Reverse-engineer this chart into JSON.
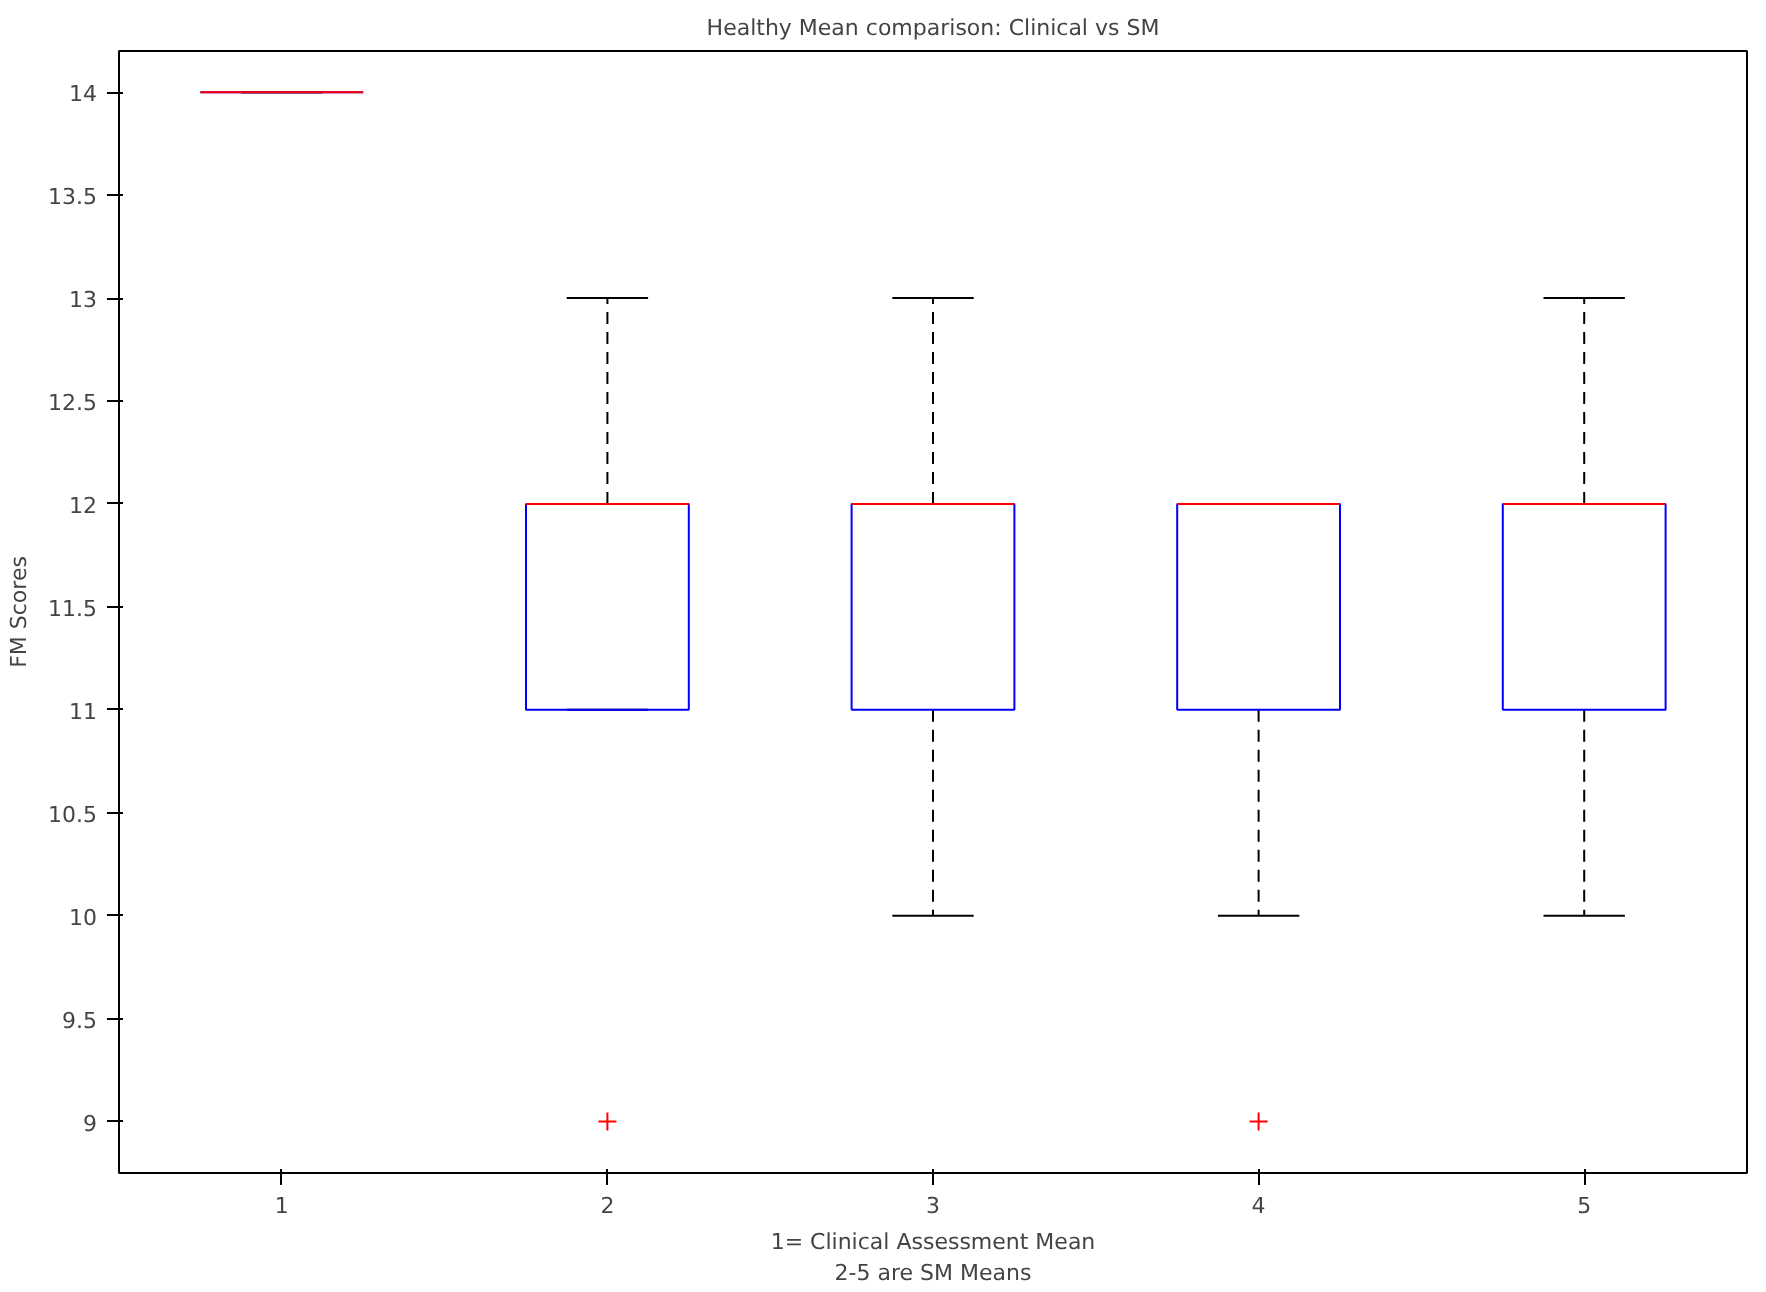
{
  "chart_data": {
    "type": "box",
    "title": "Healthy Mean comparison: Clinical vs SM",
    "xlabel": "1= Clinical Assessment Mean\n2-5 are SM Means",
    "ylabel": "FM Scores",
    "categories": [
      "1",
      "2",
      "3",
      "4",
      "5"
    ],
    "boxes": [
      {
        "low": 14,
        "q1": 14,
        "median": 14,
        "q3": 14,
        "high": 14
      },
      {
        "low": 11,
        "q1": 11,
        "median": 12,
        "q3": 12,
        "high": 13,
        "outliers": [
          9
        ]
      },
      {
        "low": 10,
        "q1": 11,
        "median": 12,
        "q3": 12,
        "high": 13
      },
      {
        "low": 10,
        "q1": 11,
        "median": 12,
        "q3": 12,
        "high": 12,
        "outliers": [
          9
        ]
      },
      {
        "low": 10,
        "q1": 11,
        "median": 12,
        "q3": 12,
        "high": 13
      }
    ],
    "color": "#0000ff",
    "marker": "cross",
    "line_style": "dashed",
    "ylim": [
      8.75,
      14.2
    ],
    "yticks": [
      9,
      9.5,
      10,
      10.5,
      11,
      11.5,
      12,
      12.5,
      13,
      13.5,
      14
    ],
    "grid": false
  }
}
